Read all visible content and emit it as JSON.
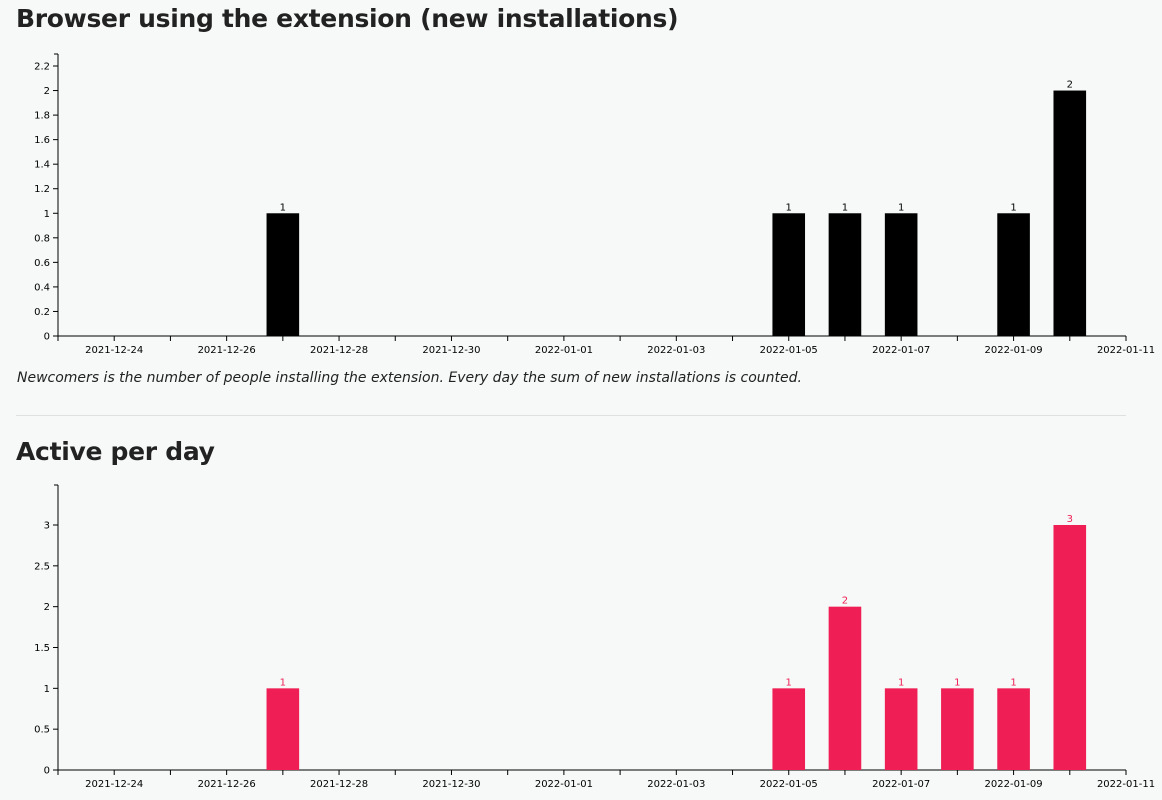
{
  "sections": [
    {
      "title": "Browser using the extension (new installations)",
      "note": "Newcomers is the number of people installing the extension. Every day the sum of new installations is counted."
    },
    {
      "title": "Active per day"
    }
  ],
  "colors": {
    "newcomers_bar": "#000000",
    "active_bar": "#ef1f55",
    "axis": "#000000"
  },
  "chart_data": [
    {
      "type": "bar",
      "title": "Browser using the extension (new installations)",
      "x_tick_labels": [
        "2021-12-24",
        "2021-12-26",
        "2021-12-28",
        "2021-12-30",
        "2022-01-01",
        "2022-01-03",
        "2022-01-05",
        "2022-01-07",
        "2022-01-09",
        "2022-01-11"
      ],
      "x_range": [
        "2021-12-23",
        "2022-01-11"
      ],
      "y_ticks": [
        "0",
        "0.2",
        "0.4",
        "0.6",
        "0.8",
        "1",
        "1.2",
        "1.4",
        "1.6",
        "1.8",
        "2",
        "2.2"
      ],
      "ylim": [
        0,
        2.2
      ],
      "grid": false,
      "points": [
        {
          "date": "2021-12-27",
          "value": 1,
          "label": "1"
        },
        {
          "date": "2022-01-05",
          "value": 1,
          "label": "1"
        },
        {
          "date": "2022-01-06",
          "value": 1,
          "label": "1"
        },
        {
          "date": "2022-01-07",
          "value": 1,
          "label": "1"
        },
        {
          "date": "2022-01-09",
          "value": 1,
          "label": "1"
        },
        {
          "date": "2022-01-10",
          "value": 2,
          "label": "2"
        }
      ]
    },
    {
      "type": "bar",
      "title": "Active per day",
      "x_tick_labels": [
        "2021-12-24",
        "2021-12-26",
        "2021-12-28",
        "2021-12-30",
        "2022-01-01",
        "2022-01-03",
        "2022-01-05",
        "2022-01-07",
        "2022-01-09",
        "2022-01-11"
      ],
      "x_range": [
        "2021-12-23",
        "2022-01-11"
      ],
      "y_ticks": [
        "0",
        "0.5",
        "1",
        "1.5",
        "2",
        "2.5",
        "3"
      ],
      "ylim": [
        0,
        3
      ],
      "grid": false,
      "points": [
        {
          "date": "2021-12-27",
          "value": 1,
          "label": "1"
        },
        {
          "date": "2022-01-05",
          "value": 1,
          "label": "1"
        },
        {
          "date": "2022-01-06",
          "value": 2,
          "label": "2"
        },
        {
          "date": "2022-01-07",
          "value": 1,
          "label": "1"
        },
        {
          "date": "2022-01-08",
          "value": 1,
          "label": "1"
        },
        {
          "date": "2022-01-09",
          "value": 1,
          "label": "1"
        },
        {
          "date": "2022-01-10",
          "value": 3,
          "label": "3"
        }
      ]
    }
  ]
}
